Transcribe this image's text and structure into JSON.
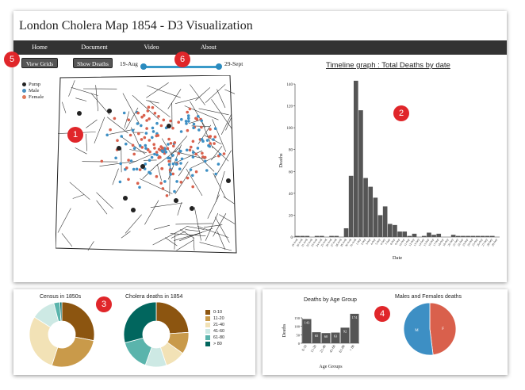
{
  "app": {
    "title": "London Cholera Map 1854 - D3 Visualization"
  },
  "nav": {
    "items": [
      {
        "label": "Home"
      },
      {
        "label": "Document"
      },
      {
        "label": "Video"
      },
      {
        "label": "About"
      }
    ]
  },
  "controls": {
    "view_grids_label": "View Grids",
    "show_deaths_label": "Show Deaths",
    "slider_start_label": "19-Aug",
    "slider_end_label": "29-Sept",
    "slider_range": [
      0,
      1
    ]
  },
  "map": {
    "legend": [
      {
        "label": "Pump",
        "color": "#222222"
      },
      {
        "label": "Male",
        "color": "#4a90c0"
      },
      {
        "label": "Female",
        "color": "#e07a5a"
      }
    ]
  },
  "markers": [
    "1",
    "2",
    "3",
    "4",
    "5",
    "6"
  ],
  "colors": {
    "navbar": "#333333",
    "bar": "#555555",
    "male": "#3d8fc4",
    "female": "#d9604c",
    "badge": "#e0262a"
  },
  "timeline": {
    "title": "Timeline graph : Total Deaths by date",
    "chart_data": {
      "type": "bar",
      "title": "Timeline graph : Total Deaths by date",
      "xlabel": "Date",
      "ylabel": "Deaths",
      "ylim": [
        0,
        140
      ],
      "yticks": [
        "0",
        "20",
        "40",
        "60",
        "80",
        "100",
        "120",
        "140"
      ],
      "categories": [
        "19-Aug",
        "20-Aug",
        "21-Aug",
        "22-Aug",
        "23-Aug",
        "24-Aug",
        "25-Aug",
        "26-Aug",
        "27-Aug",
        "28-Aug",
        "29-Aug",
        "30-Aug",
        "31-Aug",
        "1-Sep",
        "2-Sep",
        "3-Sep",
        "4-Sep",
        "5-Sep",
        "6-Sep",
        "7-Sep",
        "8-Sep",
        "9-Sep",
        "10-Sep",
        "11-Sep",
        "12-Sep",
        "13-Sep",
        "14-Sep",
        "15-Sep",
        "16-Sep",
        "17-Sep",
        "18-Sep",
        "19-Sep",
        "20-Sep",
        "21-Sep",
        "22-Sep",
        "23-Sep",
        "24-Sep",
        "25-Sep",
        "26-Sep",
        "27-Sep",
        "28-Sep",
        "29-Sep"
      ],
      "values": [
        1,
        1,
        1,
        0,
        1,
        1,
        0,
        1,
        1,
        0,
        8,
        56,
        143,
        116,
        54,
        46,
        36,
        20,
        28,
        12,
        11,
        5,
        5,
        1,
        3,
        0,
        1,
        4,
        2,
        3,
        0,
        0,
        2,
        1,
        1,
        1,
        1,
        1,
        1,
        1,
        1,
        0
      ]
    }
  },
  "census_pie": {
    "title": "Census in 1850s",
    "chart_data": {
      "type": "pie",
      "title": "Census in 1850s",
      "labels": [
        "0-10",
        "11-20",
        "21-40",
        "41-60",
        "61-80",
        "> 80"
      ],
      "values": [
        28,
        27,
        29,
        12,
        3,
        1
      ]
    }
  },
  "cholera_pie": {
    "title": "Cholera deaths in 1854",
    "legend": [
      "0-10",
      "11-20",
      "21-40",
      "41-60",
      "61-80",
      "> 80"
    ],
    "legend_colors": [
      "#8c5510",
      "#c99a4a",
      "#f2e2b6",
      "#cde9e4",
      "#5ab4ac",
      "#01665e"
    ],
    "chart_data": {
      "type": "pie",
      "title": "Cholera deaths in 1854",
      "labels": [
        "0-10",
        "11-20",
        "21-40",
        "41-60",
        "61-80",
        "> 80"
      ],
      "values": [
        143,
        65,
        60,
        63,
        92,
        174
      ]
    }
  },
  "age_bar": {
    "title": "Deaths by Age Group",
    "chart_data": {
      "type": "bar",
      "title": "Deaths by Age Group",
      "xlabel": "Age Groups",
      "ylabel": "Deaths",
      "ylim": [
        0,
        150
      ],
      "yticks": [
        "0",
        "50",
        "100",
        "150"
      ],
      "categories": [
        "0-10",
        "11-20",
        "21-40",
        "41-60",
        "61-80",
        "> 80"
      ],
      "values": [
        143,
        65,
        60,
        63,
        92,
        174
      ]
    }
  },
  "gender_pie": {
    "title": "Males and Females deaths",
    "chart_data": {
      "type": "pie",
      "title": "Males and Females deaths",
      "labels": [
        "F",
        "M"
      ],
      "values": [
        48,
        52
      ]
    }
  }
}
